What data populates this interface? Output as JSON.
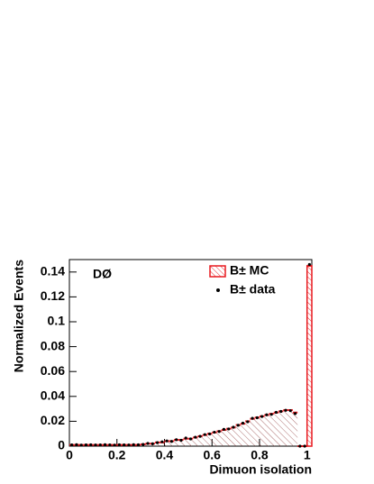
{
  "chart_data": {
    "type": "histogram",
    "annotation": "DØ",
    "xlabel": "Dimuon isolation",
    "ylabel": "Normalized Events",
    "bins": [
      0,
      0.02,
      0.04,
      0.06,
      0.08,
      0.1,
      0.12,
      0.14,
      0.16,
      0.18,
      0.2,
      0.22,
      0.24,
      0.26,
      0.28,
      0.3,
      0.32,
      0.34,
      0.36,
      0.38,
      0.4,
      0.42,
      0.44,
      0.46,
      0.48,
      0.5,
      0.52,
      0.54,
      0.56,
      0.58,
      0.6,
      0.62,
      0.64,
      0.66,
      0.68,
      0.7,
      0.72,
      0.74,
      0.76,
      0.78,
      0.8,
      0.82,
      0.84,
      0.86,
      0.88,
      0.9,
      0.92,
      0.94,
      0.96,
      0.98,
      1.0,
      1.02
    ],
    "series": [
      {
        "name": "B± MC",
        "style": "hatched",
        "color": "#e8191f",
        "values": [
          0.001,
          0.001,
          0.001,
          0.001,
          0.001,
          0.001,
          0.001,
          0.001,
          0.001,
          0.001,
          0.001,
          0.001,
          0.001,
          0.001,
          0.001,
          0.0015,
          0.002,
          0.002,
          0.003,
          0.003,
          0.004,
          0.004,
          0.005,
          0.005,
          0.006,
          0.006,
          0.007,
          0.008,
          0.009,
          0.01,
          0.011,
          0.012,
          0.013,
          0.014,
          0.015,
          0.017,
          0.018,
          0.02,
          0.022,
          0.023,
          0.024,
          0.025,
          0.026,
          0.027,
          0.028,
          0.029,
          0.029,
          0.027,
          0,
          0,
          0.145
        ]
      },
      {
        "name": "B± data",
        "style": "points",
        "color": "#000000",
        "values": [
          0.001,
          0.0012,
          0.0008,
          0.001,
          0.0011,
          0.0009,
          0.001,
          0.0012,
          0.001,
          0.0008,
          0.0011,
          0.001,
          0.0009,
          0.0012,
          0.0011,
          0.0014,
          0.0022,
          0.0019,
          0.0028,
          0.0035,
          0.0042,
          0.0038,
          0.0052,
          0.0047,
          0.0065,
          0.0058,
          0.0072,
          0.0079,
          0.0093,
          0.0098,
          0.0112,
          0.0118,
          0.0135,
          0.0138,
          0.0152,
          0.0168,
          0.0185,
          0.0196,
          0.0224,
          0.0228,
          0.0238,
          0.0252,
          0.0255,
          0.0272,
          0.0279,
          0.0288,
          0.0285,
          0.0262,
          0,
          0,
          0.146
        ]
      }
    ],
    "xlim": [
      0,
      1.02
    ],
    "xticks": [
      0,
      0.2,
      0.4,
      0.6,
      0.8,
      1
    ],
    "ylim": [
      0,
      0.15
    ],
    "yticks": [
      0,
      0.02,
      0.04,
      0.06,
      0.08,
      0.1,
      0.12,
      0.14
    ],
    "legend": "upper right"
  }
}
